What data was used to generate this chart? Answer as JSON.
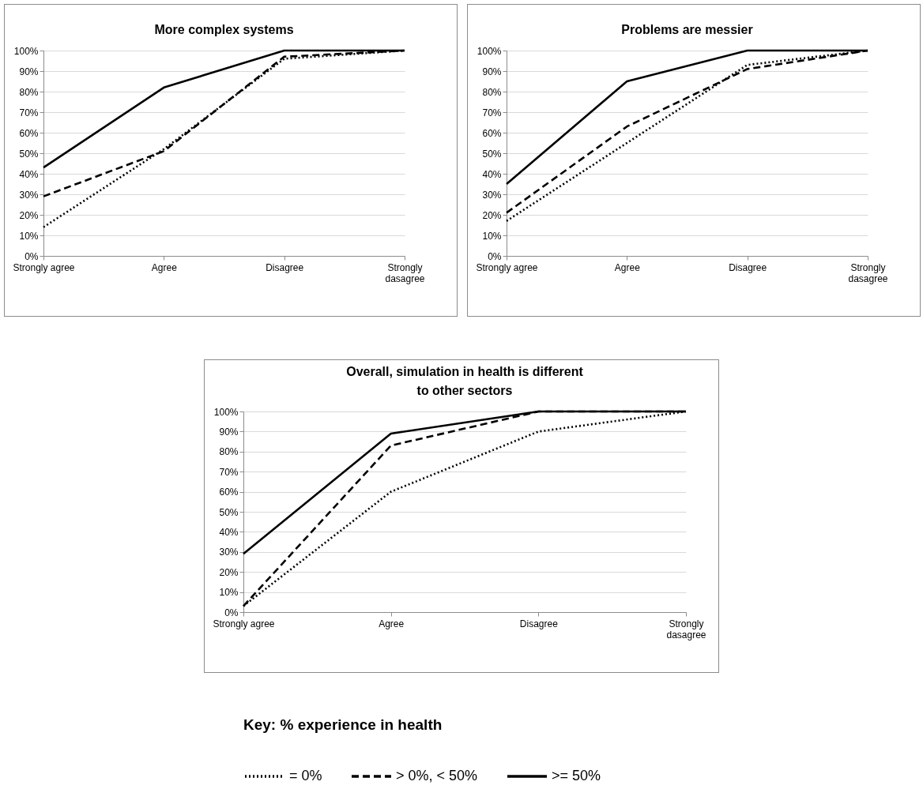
{
  "chart_data": [
    {
      "type": "line",
      "title": "More complex systems",
      "categories": [
        "Strongly agree",
        "Agree",
        "Disagree",
        "Strongly dasagree"
      ],
      "ylim": [
        0,
        100
      ],
      "yticks": [
        {
          "value": 0,
          "label": "0%"
        },
        {
          "value": 10,
          "label": "10%"
        },
        {
          "value": 20,
          "label": "20%"
        },
        {
          "value": 30,
          "label": "30%"
        },
        {
          "value": 40,
          "label": "40%"
        },
        {
          "value": 50,
          "label": "50%"
        },
        {
          "value": 60,
          "label": "60%"
        },
        {
          "value": 70,
          "label": "70%"
        },
        {
          "value": 80,
          "label": "80%"
        },
        {
          "value": 90,
          "label": "90%"
        },
        {
          "value": 100,
          "label": "100%"
        }
      ],
      "grid": "y",
      "series": [
        {
          "color": "#000000",
          "line_style": "dotted",
          "values": [
            14,
            52,
            96,
            100
          ]
        },
        {
          "color": "#000000",
          "line_style": "dashed",
          "values": [
            29,
            51,
            97,
            100
          ]
        },
        {
          "color": "#000000",
          "line_style": "solid",
          "values": [
            43,
            82,
            100,
            100
          ]
        }
      ]
    },
    {
      "type": "line",
      "title": "Problems are messier",
      "categories": [
        "Strongly agree",
        "Agree",
        "Disagree",
        "Strongly dasagree"
      ],
      "ylim": [
        0,
        100
      ],
      "yticks": [
        {
          "value": 0,
          "label": "0%"
        },
        {
          "value": 10,
          "label": "10%"
        },
        {
          "value": 20,
          "label": "20%"
        },
        {
          "value": 30,
          "label": "30%"
        },
        {
          "value": 40,
          "label": "40%"
        },
        {
          "value": 50,
          "label": "50%"
        },
        {
          "value": 60,
          "label": "60%"
        },
        {
          "value": 70,
          "label": "70%"
        },
        {
          "value": 80,
          "label": "80%"
        },
        {
          "value": 90,
          "label": "90%"
        },
        {
          "value": 100,
          "label": "100%"
        }
      ],
      "grid": "y",
      "series": [
        {
          "color": "#000000",
          "line_style": "dotted",
          "values": [
            17,
            55,
            93,
            100
          ]
        },
        {
          "color": "#000000",
          "line_style": "dashed",
          "values": [
            21,
            63,
            91,
            100
          ]
        },
        {
          "color": "#000000",
          "line_style": "solid",
          "values": [
            35,
            85,
            100,
            100
          ]
        }
      ]
    },
    {
      "type": "line",
      "title": "Overall, simulation in health is different to other sectors",
      "categories": [
        "Strongly agree",
        "Agree",
        "Disagree",
        "Strongly dasagree"
      ],
      "ylim": [
        0,
        100
      ],
      "yticks": [
        {
          "value": 0,
          "label": "0%"
        },
        {
          "value": 10,
          "label": "10%"
        },
        {
          "value": 20,
          "label": "20%"
        },
        {
          "value": 30,
          "label": "30%"
        },
        {
          "value": 40,
          "label": "40%"
        },
        {
          "value": 50,
          "label": "50%"
        },
        {
          "value": 60,
          "label": "60%"
        },
        {
          "value": 70,
          "label": "70%"
        },
        {
          "value": 80,
          "label": "80%"
        },
        {
          "value": 90,
          "label": "90%"
        },
        {
          "value": 100,
          "label": "100%"
        }
      ],
      "grid": "y",
      "legend": "bottom",
      "legend_title": "Key: % experience in health",
      "series": [
        {
          "name": "= 0%",
          "color": "#000000",
          "line_style": "dotted",
          "values": [
            3,
            60,
            90,
            100
          ]
        },
        {
          "name": "> 0%, < 50%",
          "color": "#000000",
          "line_style": "dashed",
          "values": [
            3,
            83,
            100,
            100
          ]
        },
        {
          "name": ">= 50%",
          "color": "#000000",
          "line_style": "solid",
          "values": [
            29,
            89,
            100,
            100
          ]
        }
      ]
    }
  ]
}
